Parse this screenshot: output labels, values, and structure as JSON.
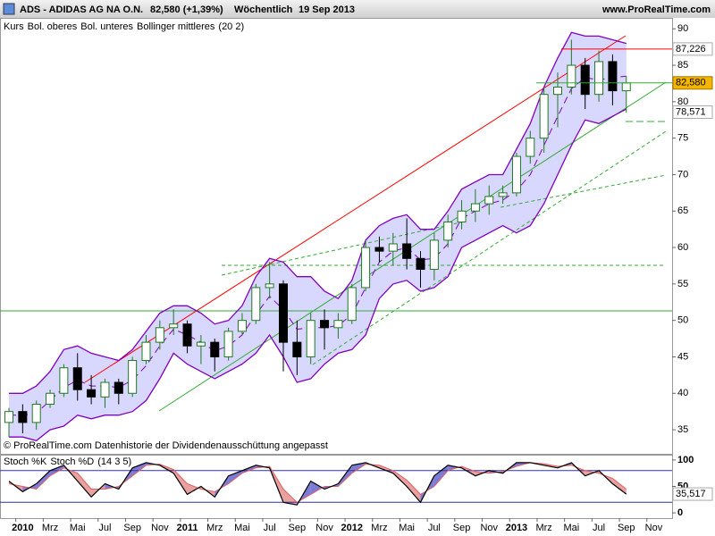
{
  "header": {
    "symbol": "ADS - ADIDAS AG NA O.N.",
    "quote": "82,580 (+1,39%)",
    "period": "Wöchentlich",
    "date": "19 Sep 2013",
    "site": "www.ProRealTime.com",
    "note": "© ProRealTime.com Datenhistorie der Dividendenausschüttung angepasst"
  },
  "chart_data": [
    {
      "type": "candlestick",
      "params": "(20 2)",
      "categories": [
        null,
        "2010",
        null,
        "Mrz",
        null,
        "Mai",
        null,
        "Jul",
        null,
        "Sep",
        null,
        "Nov",
        null,
        "2011",
        null,
        "Mrz",
        null,
        "Mai",
        null,
        "Jul",
        null,
        "Sep",
        null,
        "Nov",
        null,
        "2012",
        null,
        "Mrz",
        null,
        "Mai",
        null,
        "Jul",
        null,
        "Sep",
        null,
        "Nov",
        null,
        "2013",
        null,
        "Mrz",
        null,
        "Mai",
        null,
        "Jul",
        null,
        "Sep",
        null,
        "Nov"
      ],
      "series": [
        {
          "name": "Kurs",
          "up_color": "#1f7a1f",
          "down_color": "#000000",
          "open": [
            36,
            37.5,
            36,
            38.5,
            40,
            43.5,
            40.5,
            39.5,
            41.5,
            40,
            44.5,
            47,
            49,
            49.5,
            46.5,
            47,
            45,
            48.5,
            50,
            54.5,
            55,
            47,
            45,
            50,
            49,
            50,
            54.5,
            60,
            59.5,
            60.5,
            58.5,
            57,
            61,
            63.5,
            65,
            66,
            67,
            67.5,
            72.5,
            75,
            81,
            82,
            85,
            81,
            85.5,
            81.5,
            null,
            null
          ],
          "high": [
            38,
            38.5,
            39,
            40.5,
            44,
            45.5,
            42.5,
            42,
            42,
            45,
            48,
            50,
            51.5,
            50,
            48,
            47.5,
            49,
            51,
            55,
            58,
            55.5,
            50,
            51,
            51.5,
            51,
            55,
            61,
            61.5,
            62,
            64,
            59.5,
            62,
            64.5,
            66.5,
            68,
            68.5,
            68.5,
            73,
            76,
            82,
            84,
            88.5,
            86,
            87,
            86.5,
            83.5,
            null,
            null
          ],
          "low": [
            34,
            34.5,
            35,
            38,
            39.5,
            39,
            38.5,
            38,
            38.5,
            39.5,
            44,
            46,
            48,
            45.5,
            44,
            43,
            44.5,
            48,
            49.5,
            53,
            43,
            42.5,
            44,
            46,
            47.5,
            49.5,
            54,
            58,
            57.5,
            57,
            54.5,
            55.5,
            60,
            62.5,
            63.5,
            64.5,
            66,
            67,
            71.5,
            73,
            76.5,
            81,
            79,
            80,
            79.5,
            78.5,
            null,
            null
          ],
          "close": [
            37.5,
            36,
            38.5,
            40,
            43.5,
            40.5,
            39.5,
            41.5,
            40,
            44.5,
            47,
            49,
            49.5,
            46.5,
            47,
            45,
            48.5,
            50,
            54.5,
            55,
            47,
            45,
            50,
            49,
            50,
            54.5,
            60,
            59.5,
            60.5,
            58.5,
            57,
            61,
            63.5,
            65,
            66,
            67,
            67.5,
            72.5,
            75,
            81,
            82,
            85,
            81,
            85.5,
            81.5,
            82.58,
            null,
            null
          ]
        },
        {
          "name": "Bol. oberes",
          "color": "#8000c0",
          "values": [
            40,
            40,
            41,
            43,
            46,
            46.5,
            45.5,
            45,
            44.5,
            46,
            48.5,
            51,
            52,
            52,
            51,
            49.5,
            50,
            52,
            56,
            58.5,
            58,
            56,
            56,
            54,
            53,
            55.5,
            61,
            63,
            64,
            64.5,
            62.5,
            62.5,
            65,
            68,
            69,
            70,
            70,
            73.5,
            77,
            82,
            86,
            89.5,
            89,
            89,
            88.5,
            88,
            null,
            null
          ]
        },
        {
          "name": "Bol. unteres",
          "color": "#8000c0",
          "values": [
            34,
            34,
            33.5,
            35,
            35.5,
            37,
            36.5,
            37,
            37,
            37.5,
            39,
            42,
            45.5,
            44,
            43,
            42,
            43,
            44,
            45.5,
            48,
            45,
            41.5,
            42,
            44,
            45.5,
            46,
            48,
            53,
            55,
            55.5,
            54,
            54.5,
            56,
            60,
            61,
            62,
            63,
            62,
            63,
            66,
            70,
            74,
            77.5,
            77,
            78,
            79,
            null,
            null
          ]
        },
        {
          "name": "Bollinger mittleres",
          "color": "#8000c0",
          "values": [
            37,
            37,
            37.3,
            39,
            40.8,
            41.8,
            41,
            41,
            40.8,
            41.8,
            43.8,
            46.5,
            48.8,
            48,
            47,
            45.8,
            46.5,
            48,
            50.8,
            53.3,
            51.5,
            48.8,
            49,
            49,
            49.3,
            50.8,
            54.5,
            58,
            59.5,
            60,
            58.3,
            58.5,
            60.5,
            64,
            65,
            66,
            66.5,
            67.8,
            70,
            74,
            78,
            81.8,
            83.3,
            83,
            83.3,
            83.5,
            null,
            null
          ]
        }
      ],
      "band_color": "#c8c8ff",
      "ylim": [
        31.7,
        91.5
      ],
      "yticks": [
        35,
        40,
        45,
        50,
        55,
        60,
        65,
        70,
        75,
        80,
        85,
        90
      ],
      "markers": [
        {
          "value": 87.226,
          "label": "87,226",
          "color": "#ff0000"
        },
        {
          "value": 82.58,
          "label": "82,580",
          "color": "#f5b400"
        },
        {
          "value": 78.571,
          "label": "78,571",
          "color": "#3030ff"
        }
      ]
    },
    {
      "type": "line",
      "params": "(14 3 5)",
      "series": [
        {
          "name": "Stoch %K",
          "color": "#000000",
          "values": [
            60,
            40,
            55,
            80,
            90,
            60,
            30,
            55,
            45,
            85,
            95,
            90,
            75,
            35,
            50,
            30,
            70,
            80,
            90,
            85,
            20,
            15,
            60,
            45,
            55,
            90,
            95,
            85,
            75,
            50,
            20,
            70,
            90,
            85,
            70,
            80,
            75,
            95,
            95,
            90,
            85,
            95,
            70,
            80,
            55,
            35.517,
            null,
            null
          ]
        },
        {
          "name": "Stoch %D",
          "color": "#e06060",
          "values": [
            55,
            50,
            45,
            70,
            85,
            75,
            45,
            45,
            50,
            70,
            90,
            92,
            82,
            55,
            45,
            40,
            55,
            75,
            85,
            88,
            45,
            20,
            35,
            50,
            50,
            75,
            92,
            90,
            80,
            62,
            35,
            50,
            80,
            88,
            78,
            75,
            78,
            88,
            95,
            93,
            88,
            90,
            80,
            75,
            65,
            45,
            null,
            null
          ]
        }
      ],
      "fill_up": "#5050c8",
      "fill_down": "#e08080",
      "levels": [
        80,
        20
      ],
      "ylim": [
        -10,
        110
      ],
      "yticks": [
        0,
        50,
        100
      ],
      "markers": [
        {
          "value": 35.517,
          "label": "35,517",
          "color": "#000000"
        }
      ]
    }
  ]
}
